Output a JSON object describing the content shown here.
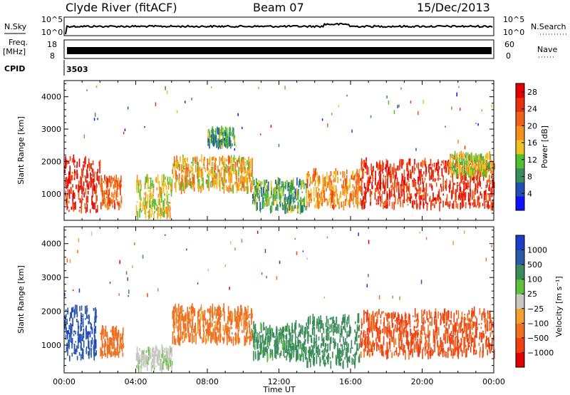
{
  "header": {
    "station": "Clyde River (fitACF)",
    "beam": "Beam 07",
    "date": "15/Dec/2013"
  },
  "noise_panel": {
    "left_label": "N.Sky",
    "left_ticks": [
      "10^5",
      "10^0"
    ],
    "right_label": "N.Search",
    "right_ticks": [
      "10^5",
      "10^0"
    ]
  },
  "freq_panel": {
    "left_label_line1": "Freq.",
    "left_label_line2": "[MHz]",
    "left_ticks": [
      "18",
      "8"
    ],
    "right_label": "Nave",
    "right_ticks": [
      "60",
      "0"
    ]
  },
  "cpid_panel": {
    "label": "CPID",
    "value": "3503"
  },
  "x_axis": {
    "title": "Time UT",
    "ticks": [
      "00:00",
      "04:00",
      "08:00",
      "12:00",
      "16:00",
      "20:00",
      "00:00"
    ]
  },
  "colors": {
    "power": [
      "#1010ff",
      "#2050b0",
      "#3a8c5a",
      "#50c030",
      "#f0c020",
      "#f59020",
      "#f06018",
      "#e83010",
      "#e00000"
    ],
    "velocity": [
      "#e00000",
      "#f04010",
      "#f07020",
      "#f5a030",
      "#c8c8c0",
      "#60c040",
      "#3a8c5a",
      "#2a5aa8",
      "#1a3ec8"
    ]
  },
  "chart_data": [
    {
      "type": "heatmap",
      "title": "",
      "ylabel": "Slant Range [km]",
      "xlabel": "",
      "x_range_hours": [
        0,
        24
      ],
      "ylim": [
        180,
        4500
      ],
      "yticks": [
        "1000",
        "2000",
        "3000",
        "4000"
      ],
      "colorbar": {
        "label": "Power [dB]",
        "ticks": [
          "4",
          "8",
          "12",
          "16",
          "20",
          "24",
          "28"
        ],
        "range": [
          0,
          30
        ]
      },
      "echo_regions": [
        {
          "t0": 0.0,
          "t1": 2.0,
          "r0": 450,
          "r1": 2100,
          "level": 26
        },
        {
          "t0": 2.0,
          "t1": 3.2,
          "r0": 600,
          "r1": 1500,
          "level": 21
        },
        {
          "t0": 4.0,
          "t1": 6.0,
          "r0": 300,
          "r1": 1500,
          "level": 15
        },
        {
          "t0": 6.0,
          "t1": 10.5,
          "r0": 1100,
          "r1": 2100,
          "level": 17
        },
        {
          "t0": 8.0,
          "t1": 9.5,
          "r0": 2500,
          "r1": 3000,
          "level": 9
        },
        {
          "t0": 10.5,
          "t1": 13.5,
          "r0": 500,
          "r1": 1400,
          "level": 10
        },
        {
          "t0": 13.5,
          "t1": 16.5,
          "r0": 600,
          "r1": 1700,
          "level": 19
        },
        {
          "t0": 16.5,
          "t1": 24.0,
          "r0": 600,
          "r1": 2000,
          "level": 25
        },
        {
          "t0": 21.5,
          "t1": 24.0,
          "r0": 1600,
          "r1": 2200,
          "level": 14
        }
      ]
    },
    {
      "type": "heatmap",
      "title": "",
      "ylabel": "Slant Range [km]",
      "xlabel": "Time UT",
      "x_range_hours": [
        0,
        24
      ],
      "ylim": [
        180,
        4500
      ],
      "yticks": [
        "1000",
        "2000",
        "3000",
        "4000"
      ],
      "colorbar": {
        "label": "Velocity [m s⁻¹]",
        "ticks": [
          "1000",
          "500",
          "100",
          "25",
          "−25",
          "−100",
          "−500",
          "−1000"
        ]
      },
      "echo_regions": [
        {
          "t0": 0.0,
          "t1": 1.8,
          "r0": 600,
          "r1": 2100,
          "velocity": 900
        },
        {
          "t0": 2.0,
          "t1": 3.3,
          "r0": 700,
          "r1": 1500,
          "velocity": -300
        },
        {
          "t0": 4.0,
          "t1": 6.0,
          "r0": 300,
          "r1": 900,
          "velocity": 20
        },
        {
          "t0": 6.0,
          "t1": 10.5,
          "r0": 1100,
          "r1": 2100,
          "velocity": -150
        },
        {
          "t0": 10.5,
          "t1": 13.5,
          "r0": 600,
          "r1": 1600,
          "velocity": 150
        },
        {
          "t0": 13.5,
          "t1": 16.5,
          "r0": 400,
          "r1": 1800,
          "velocity": 200
        },
        {
          "t0": 16.5,
          "t1": 24.0,
          "r0": 700,
          "r1": 2000,
          "velocity": -600
        }
      ]
    }
  ]
}
